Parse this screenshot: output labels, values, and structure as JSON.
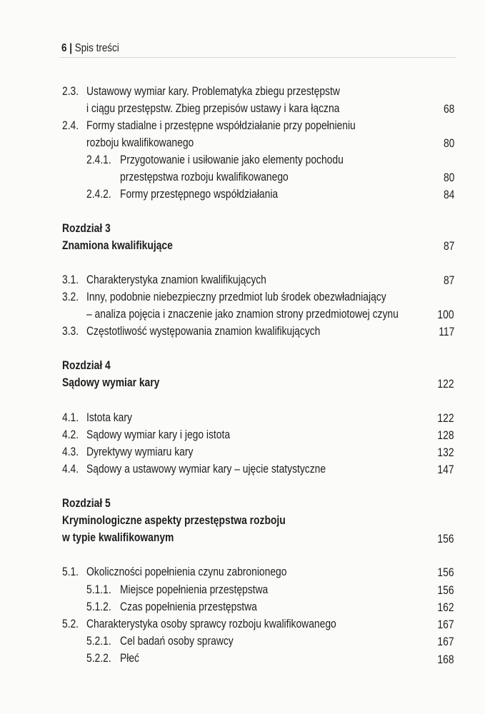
{
  "header": {
    "page_number": "6",
    "separator": "|",
    "title": "Spis treści"
  },
  "entries": [
    {
      "num": "2.3.",
      "lines": [
        "Ustawowy wymiar kary. Problematyka zbiegu przestępstw",
        "i ciągu przestępstw. Zbieg przepisów ustawy i kara łączna"
      ],
      "page": "68"
    },
    {
      "num": "2.4.",
      "lines": [
        "Formy stadialne i przestępne współdziałanie przy popełnieniu",
        "rozboju kwalifikowanego"
      ],
      "page": "80"
    },
    {
      "num": "2.4.1.",
      "lines": [
        "Przygotowanie i usiłowanie jako elementy pochodu",
        "przestępstwa rozboju kwalifikowanego"
      ],
      "page": "80"
    },
    {
      "num": "2.4.2.",
      "lines": [
        "Formy przestępnego współdziałania"
      ],
      "page": "84"
    },
    {
      "chapter": "Rozdział 3",
      "lines": [
        "Znamiona kwalifikujące"
      ],
      "page": "87"
    },
    {
      "num": "3.1.",
      "lines": [
        "Charakterystyka znamion kwalifikujących"
      ],
      "page": "87"
    },
    {
      "num": "3.2.",
      "lines": [
        "Inny, podobnie niebezpieczny przedmiot lub środek obezwładniający",
        "– analiza pojęcia i znaczenie jako znamion strony przedmiotowej czynu"
      ],
      "page": "100"
    },
    {
      "num": "3.3.",
      "lines": [
        "Częstotliwość występowania znamion kwalifikujących"
      ],
      "page": "117"
    },
    {
      "chapter": "Rozdział 4",
      "lines": [
        "Sądowy wymiar kary"
      ],
      "page": "122"
    },
    {
      "num": "4.1.",
      "lines": [
        "Istota kary"
      ],
      "page": "122"
    },
    {
      "num": "4.2.",
      "lines": [
        "Sądowy wymiar kary i jego istota"
      ],
      "page": "128"
    },
    {
      "num": "4.3.",
      "lines": [
        "Dyrektywy wymiaru kary"
      ],
      "page": "132"
    },
    {
      "num": "4.4.",
      "lines": [
        "Sądowy a ustawowy wymiar kary – ujęcie statystyczne"
      ],
      "page": "147"
    },
    {
      "chapter": "Rozdział 5",
      "lines": [
        "Kryminologiczne aspekty przestępstwa rozboju",
        "w typie kwalifikowanym"
      ],
      "page": "156"
    },
    {
      "num": "5.1.",
      "lines": [
        "Okoliczności popełnienia czynu zabronionego"
      ],
      "page": "156"
    },
    {
      "num": "5.1.1.",
      "lines": [
        "Miejsce popełnienia przestępstwa"
      ],
      "page": "156"
    },
    {
      "num": "5.1.2.",
      "lines": [
        "Czas popełnienia przestępstwa"
      ],
      "page": "162"
    },
    {
      "num": "5.2.",
      "lines": [
        "Charakterystyka osoby sprawcy rozboju kwalifikowanego"
      ],
      "page": "167"
    },
    {
      "num": "5.2.1.",
      "lines": [
        "Cel badań osoby sprawcy"
      ],
      "page": "167"
    },
    {
      "num": "5.2.2.",
      "lines": [
        "Płeć"
      ],
      "page": "168"
    }
  ]
}
